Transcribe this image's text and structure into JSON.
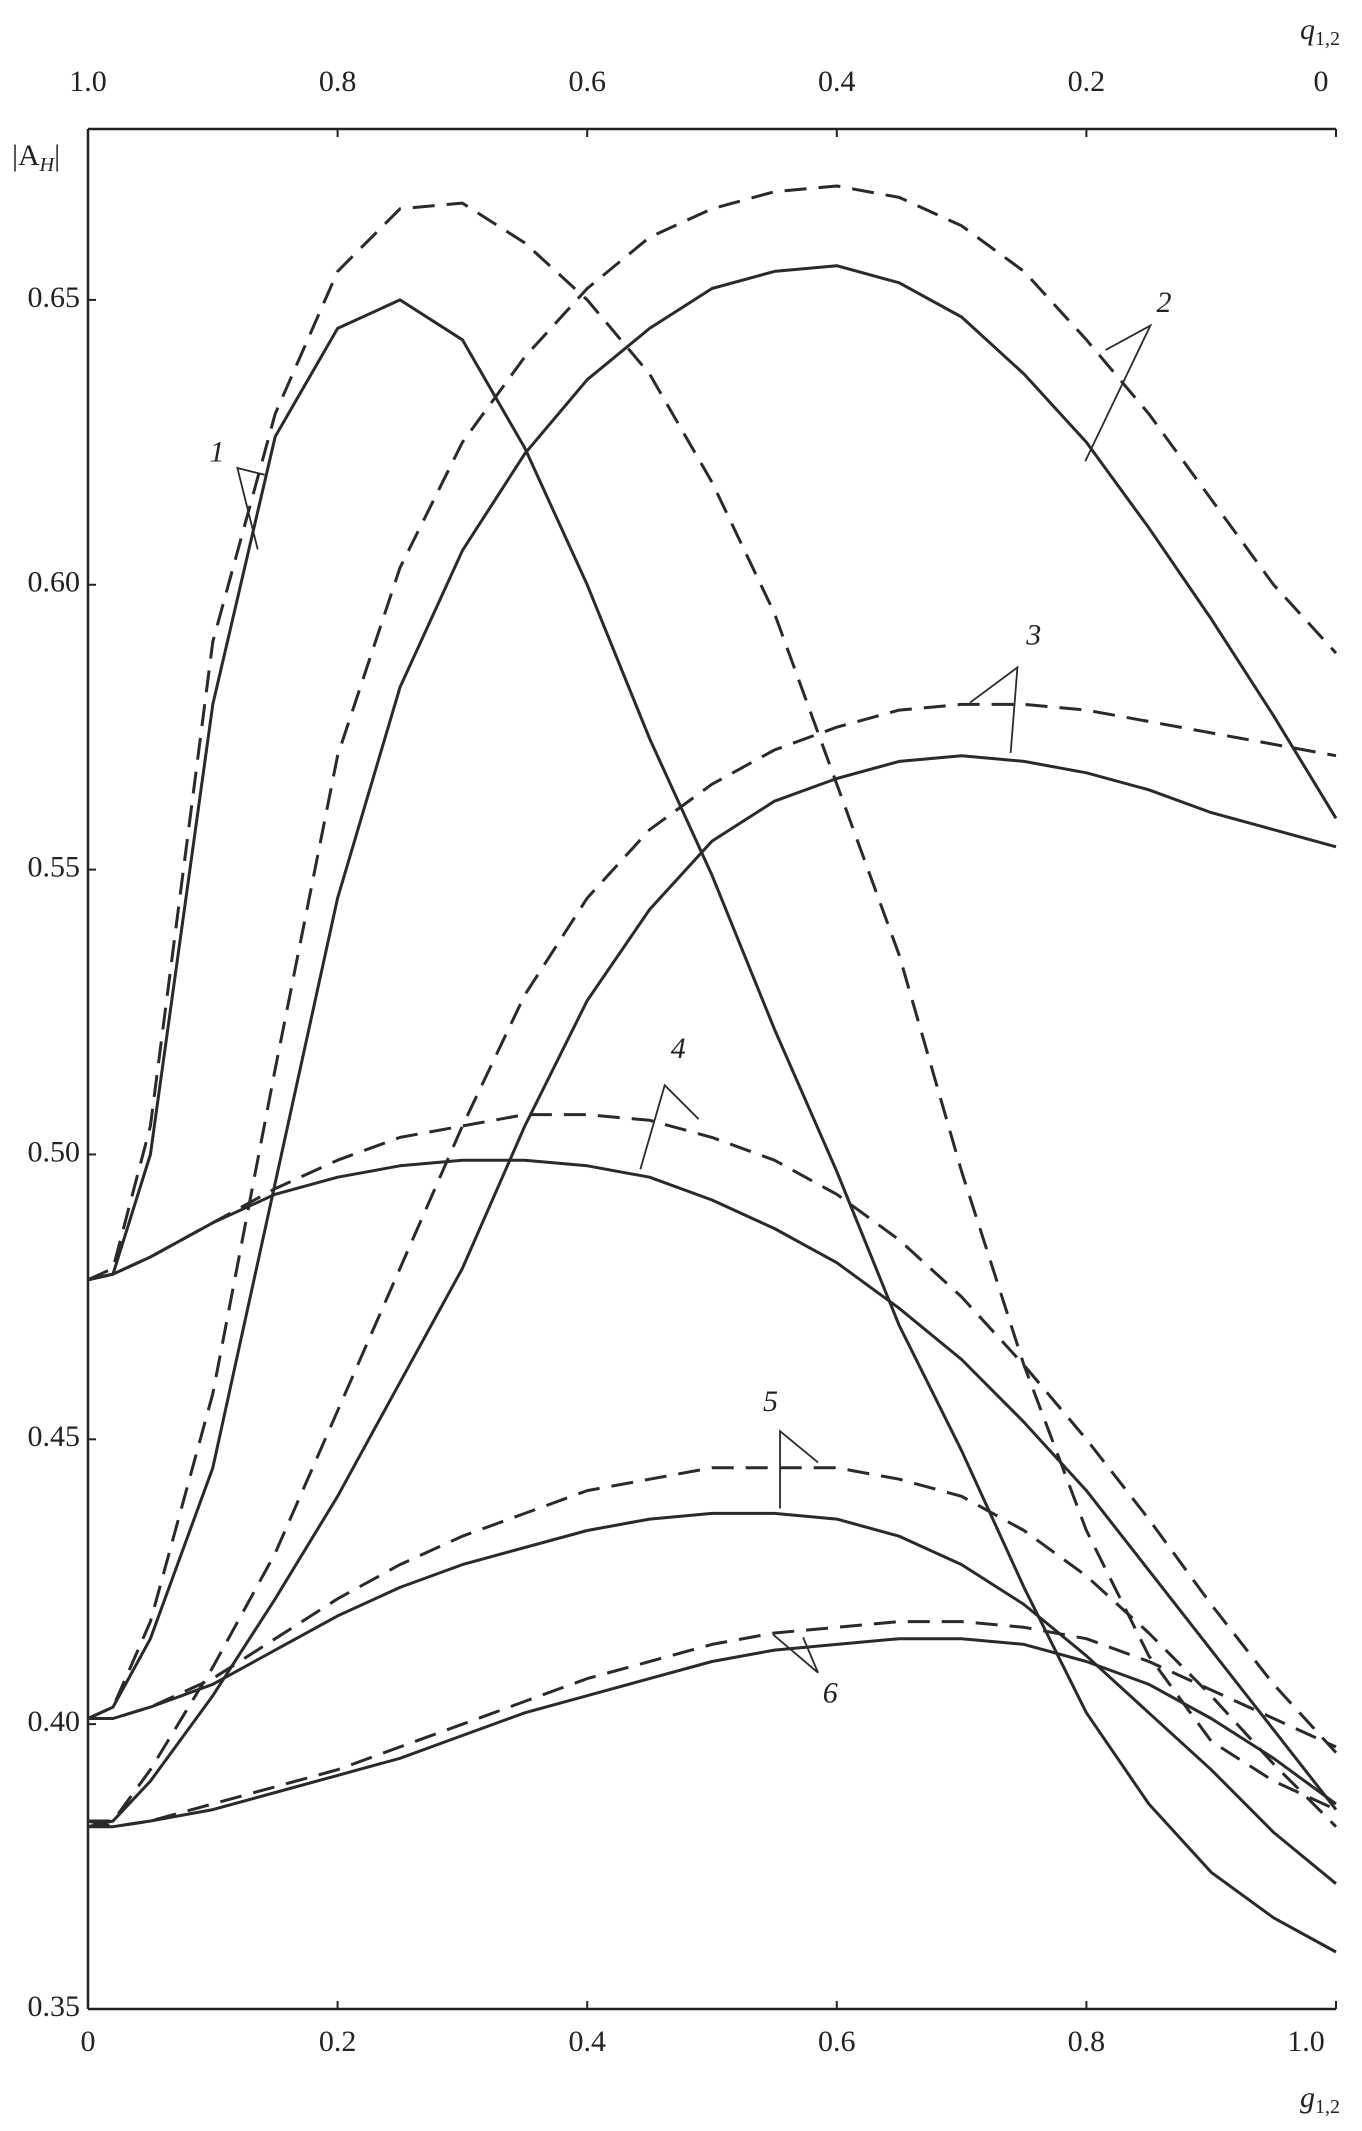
{
  "chart_data": {
    "type": "line",
    "x_label": {
      "text": "g",
      "subscript": "1,2"
    },
    "x2_label": {
      "text": "q",
      "subscript": "1,2"
    },
    "y_label": {
      "text": "|A",
      "subscript": "H",
      "suffix": "|"
    },
    "x": [
      0,
      0.02,
      0.05,
      0.1,
      0.15,
      0.2,
      0.25,
      0.3,
      0.35,
      0.4,
      0.45,
      0.5,
      0.55,
      0.6,
      0.65,
      0.7,
      0.75,
      0.8,
      0.85,
      0.9,
      0.95,
      1.0
    ],
    "xlim": [
      0,
      1
    ],
    "xticks": [
      0,
      0.2,
      0.4,
      0.6,
      0.8,
      {
        "value": 1.0,
        "label": "1.0"
      }
    ],
    "x2lim": [
      1,
      0
    ],
    "x2ticks": [
      {
        "value": 1.0,
        "label": "1.0"
      },
      0.8,
      0.6,
      0.4,
      0.2,
      0
    ],
    "ylim": [
      0.35,
      0.68
    ],
    "yticks": [
      0.35,
      {
        "value": 0.4,
        "label": "0.40"
      },
      0.45,
      {
        "value": 0.5,
        "label": "0.50"
      },
      0.55,
      {
        "value": 0.6,
        "label": "0.60"
      },
      0.65
    ],
    "color": "#2a2a2a",
    "series": [
      {
        "name": "1",
        "values": [
          0.478,
          0.479,
          0.5,
          0.579,
          0.626,
          0.645,
          0.65,
          0.643,
          0.624,
          0.6,
          0.573,
          0.549,
          0.522,
          0.497,
          0.47,
          0.448,
          0.424,
          0.402,
          0.386,
          0.374,
          0.366,
          0.36
        ],
        "dashed_values": [
          0.478,
          0.48,
          0.505,
          0.59,
          0.63,
          0.655,
          0.666,
          0.667,
          0.66,
          0.65,
          0.637,
          0.618,
          0.595,
          0.565,
          0.535,
          0.497,
          0.463,
          0.434,
          0.412,
          0.397,
          0.39,
          0.385
        ]
      },
      {
        "name": "2",
        "values": [
          0.401,
          0.403,
          0.415,
          0.445,
          0.495,
          0.545,
          0.582,
          0.606,
          0.623,
          0.636,
          0.645,
          0.652,
          0.655,
          0.656,
          0.653,
          0.647,
          0.637,
          0.625,
          0.61,
          0.594,
          0.577,
          0.559
        ],
        "dashed_values": [
          0.401,
          0.403,
          0.418,
          0.458,
          0.515,
          0.57,
          0.603,
          0.625,
          0.64,
          0.652,
          0.661,
          0.666,
          0.669,
          0.67,
          0.668,
          0.663,
          0.655,
          0.643,
          0.63,
          0.615,
          0.6,
          0.588
        ]
      },
      {
        "name": "3",
        "values": [
          0.382,
          0.383,
          0.39,
          0.405,
          0.422,
          0.44,
          0.46,
          0.48,
          0.505,
          0.527,
          0.543,
          0.555,
          0.562,
          0.566,
          0.569,
          0.57,
          0.569,
          0.567,
          0.564,
          0.56,
          0.557,
          0.554
        ],
        "dashed_values": [
          0.383,
          0.383,
          0.392,
          0.41,
          0.43,
          0.455,
          0.48,
          0.505,
          0.528,
          0.545,
          0.557,
          0.565,
          0.571,
          0.575,
          0.578,
          0.579,
          0.579,
          0.578,
          0.576,
          0.574,
          0.572,
          0.57
        ]
      },
      {
        "name": "4",
        "values": [
          0.478,
          0.479,
          0.482,
          0.488,
          0.493,
          0.496,
          0.498,
          0.499,
          0.499,
          0.498,
          0.496,
          0.492,
          0.487,
          0.481,
          0.473,
          0.464,
          0.453,
          0.441,
          0.427,
          0.413,
          0.399,
          0.385
        ],
        "dashed_values": [
          0.478,
          0.479,
          0.482,
          0.488,
          0.494,
          0.499,
          0.503,
          0.505,
          0.507,
          0.507,
          0.506,
          0.503,
          0.499,
          0.493,
          0.485,
          0.475,
          0.463,
          0.45,
          0.436,
          0.421,
          0.407,
          0.395
        ]
      },
      {
        "name": "5",
        "values": [
          0.401,
          0.401,
          0.403,
          0.407,
          0.413,
          0.419,
          0.424,
          0.428,
          0.431,
          0.434,
          0.436,
          0.437,
          0.437,
          0.436,
          0.433,
          0.428,
          0.421,
          0.412,
          0.402,
          0.392,
          0.381,
          0.372
        ],
        "dashed_values": [
          0.401,
          0.401,
          0.403,
          0.408,
          0.415,
          0.422,
          0.428,
          0.433,
          0.437,
          0.441,
          0.443,
          0.445,
          0.445,
          0.445,
          0.443,
          0.44,
          0.434,
          0.426,
          0.416,
          0.405,
          0.393,
          0.382
        ]
      },
      {
        "name": "6",
        "values": [
          0.382,
          0.382,
          0.383,
          0.385,
          0.388,
          0.391,
          0.394,
          0.398,
          0.402,
          0.405,
          0.408,
          0.411,
          0.413,
          0.414,
          0.415,
          0.415,
          0.414,
          0.411,
          0.407,
          0.401,
          0.394,
          0.386
        ],
        "dashed_values": [
          0.383,
          0.382,
          0.383,
          0.386,
          0.389,
          0.392,
          0.396,
          0.4,
          0.404,
          0.408,
          0.411,
          0.414,
          0.416,
          0.417,
          0.418,
          0.418,
          0.417,
          0.415,
          0.411,
          0.406,
          0.401,
          0.396
        ]
      }
    ]
  }
}
